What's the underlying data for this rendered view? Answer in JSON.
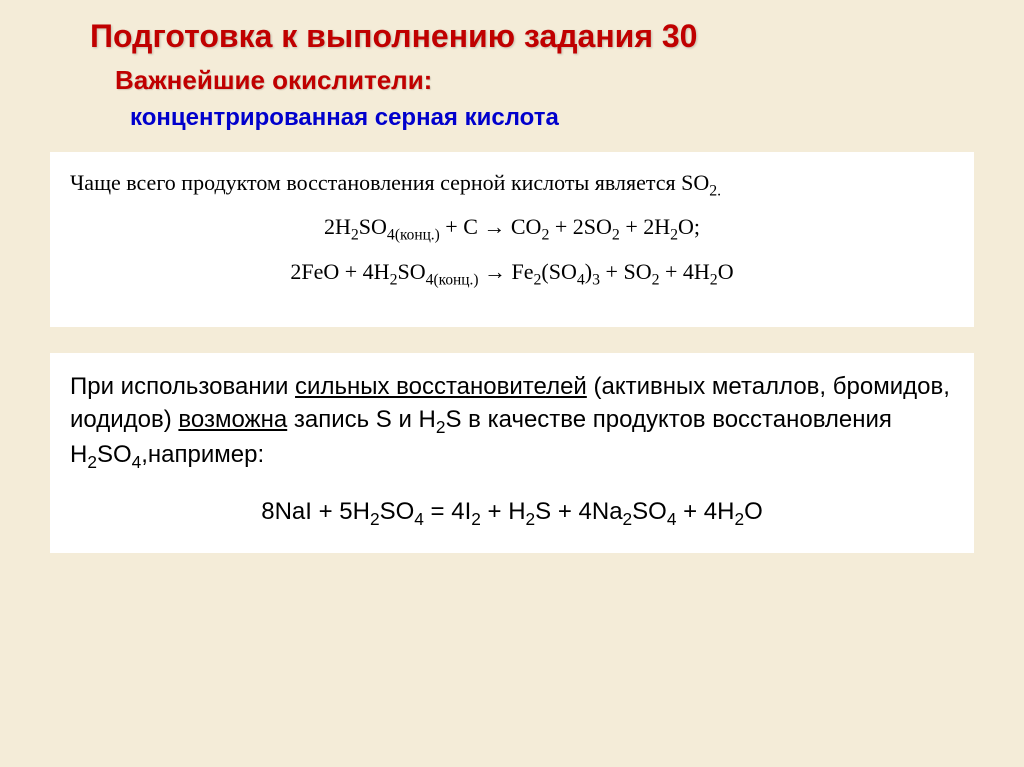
{
  "title": "Подготовка к выполнению задания 30",
  "subtitle": "Важнейшие окислители:",
  "subsubtitle": "концентрированная серная кислота",
  "box1": {
    "intro_prefix": "Чаще всего продуктом восстановления серной кислоты является SO",
    "intro_sub": "2.",
    "eq1": {
      "left": "2H₂SO₄(конц.) + C",
      "right": "CO₂ + 2SO₂ + 2H₂O;"
    },
    "eq2": {
      "left": "2FeO + 4H₂SO₄(конц.)",
      "right": "Fe₂(SO₄)₃ + SO₂ + 4H₂O"
    }
  },
  "box2": {
    "line1_a": "При использовании ",
    "line1_u1": "сильных восстановителей",
    "line1_b": " (активных металлов, бромидов, иодидов) ",
    "line1_u2": "возможна",
    "line1_c": " запись S и H",
    "line1_sub1": "2",
    "line1_d": "S в качестве продуктов восстановления H",
    "line1_sub2": "2",
    "line1_e": "SO",
    "line1_sub3": "4",
    "line1_f": ",например:",
    "eq": "8NaI + 5H₂SO₄ = 4I₂ + H₂S + 4Na₂SO₄ + 4H₂O"
  },
  "colors": {
    "background": "#f4ecd8",
    "title": "#c00000",
    "subtitle": "#c00000",
    "subsubtitle": "#0000cc",
    "box_bg": "#ffffff",
    "text": "#000000"
  },
  "fonts": {
    "title_size": 32,
    "subtitle_size": 26,
    "subsubtitle_size": 24,
    "box_serif_size": 22,
    "box_sans_size": 24
  }
}
